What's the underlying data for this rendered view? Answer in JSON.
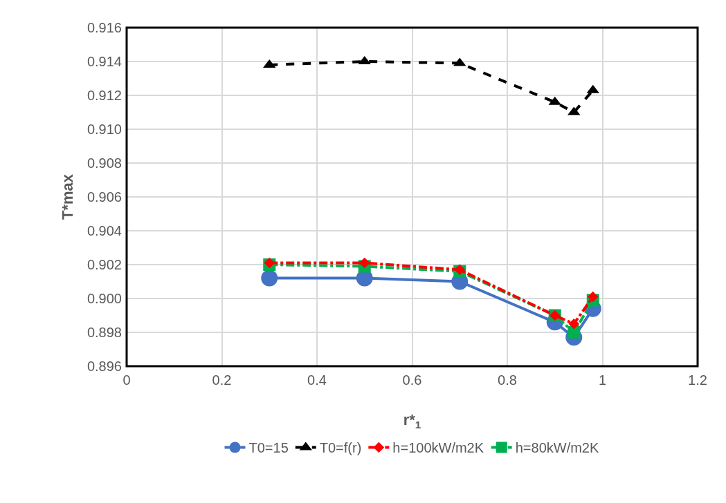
{
  "chart_data": {
    "type": "line",
    "xlabel": "r*$_{1}$",
    "ylabel": "T*max",
    "x": [
      0.3,
      0.5,
      0.7,
      0.9,
      0.94,
      0.98
    ],
    "series": [
      {
        "name": "T0=15",
        "color": "#4472c4",
        "marker": "circle",
        "line_style": "solid",
        "values": [
          0.9012,
          0.9012,
          0.901,
          0.8986,
          0.8977,
          0.8994
        ]
      },
      {
        "name": "T0=f(r)",
        "color": "#000000",
        "marker": "triangle",
        "line_style": "dashed",
        "values": [
          0.9138,
          0.914,
          0.9139,
          0.9116,
          0.911,
          0.9123
        ]
      },
      {
        "name": "h=100kW/m2K",
        "color": "#ff0000",
        "marker": "diamond",
        "line_style": "dotted",
        "values": [
          0.9021,
          0.9021,
          0.9017,
          0.899,
          0.8985,
          0.9001
        ]
      },
      {
        "name": "h=80kW/m2K",
        "color": "#00b050",
        "marker": "square",
        "line_style": "dotted",
        "values": [
          0.902,
          0.9019,
          0.9016,
          0.899,
          0.898,
          0.8999
        ]
      }
    ],
    "xlim": [
      0,
      1.2
    ],
    "xticks": [
      0,
      0.2,
      0.4,
      0.6,
      0.8,
      1,
      1.2
    ],
    "ylim": [
      0.896,
      0.916
    ],
    "yticks": [
      {
        "value": 0.896,
        "label": "0.896"
      },
      {
        "value": 0.898,
        "label": "0.898"
      },
      {
        "value": 0.9,
        "label": "0.900"
      },
      {
        "value": 0.902,
        "label": "0.902"
      },
      {
        "value": 0.904,
        "label": "0.904"
      },
      {
        "value": 0.906,
        "label": "0.906"
      },
      {
        "value": 0.908,
        "label": "0.908"
      },
      {
        "value": 0.91,
        "label": "0.910"
      },
      {
        "value": 0.912,
        "label": "0.912"
      },
      {
        "value": 0.914,
        "label": "0.914"
      },
      {
        "value": 0.916,
        "label": "0.916"
      }
    ],
    "grid": true,
    "legend": "bottom"
  }
}
